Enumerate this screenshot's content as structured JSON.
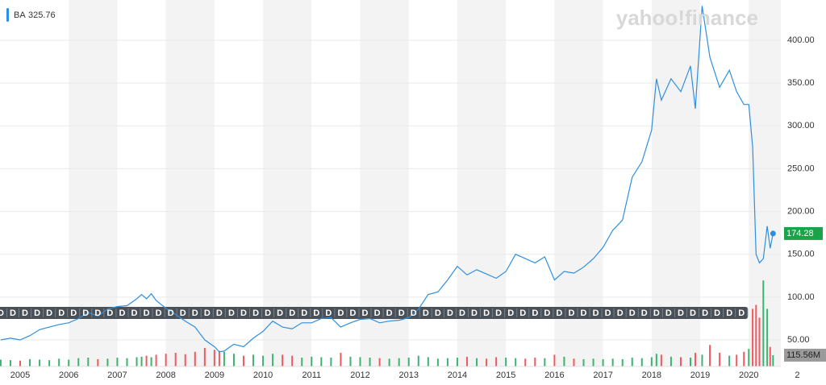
{
  "chart_data": {
    "type": "line",
    "logo": "yahoo!finance",
    "legend": {
      "symbol": "BA",
      "value": 325.76
    },
    "xlim": [
      2004.585,
      2020.66
    ],
    "xticks": [
      2005,
      2006,
      2007,
      2008,
      2009,
      2010,
      2011,
      2012,
      2013,
      2014,
      2015,
      2016,
      2017,
      2018,
      2019,
      2020,
      {
        "value": 2021,
        "label": "2"
      }
    ],
    "ylim": [
      19,
      447
    ],
    "yticks": [
      {
        "value": 50,
        "label": "50.00"
      },
      {
        "value": 100,
        "label": "100.00"
      },
      {
        "value": 150,
        "label": "150.00"
      },
      {
        "value": 200,
        "label": "200.00"
      },
      {
        "value": 250,
        "label": "250.00"
      },
      {
        "value": 300,
        "label": "300.00"
      },
      {
        "value": 350,
        "label": "350.00"
      },
      {
        "value": 400,
        "label": "400.00"
      }
    ],
    "y2lim": [
      0,
      3750
    ],
    "grid": true,
    "x": [
      2004.6,
      2004.8,
      2005.0,
      2005.2,
      2005.4,
      2005.6,
      2005.8,
      2006.0,
      2006.2,
      2006.4,
      2006.6,
      2006.8,
      2007.0,
      2007.2,
      2007.4,
      2007.5,
      2007.6,
      2007.7,
      2007.8,
      2008.0,
      2008.2,
      2008.4,
      2008.6,
      2008.8,
      2009.0,
      2009.1,
      2009.2,
      2009.4,
      2009.6,
      2009.8,
      2010.0,
      2010.2,
      2010.4,
      2010.6,
      2010.8,
      2011.0,
      2011.2,
      2011.4,
      2011.6,
      2011.8,
      2012.0,
      2012.2,
      2012.4,
      2012.6,
      2012.8,
      2013.0,
      2013.2,
      2013.4,
      2013.6,
      2013.8,
      2014.0,
      2014.2,
      2014.4,
      2014.6,
      2014.8,
      2015.0,
      2015.2,
      2015.4,
      2015.6,
      2015.8,
      2016.0,
      2016.2,
      2016.4,
      2016.6,
      2016.8,
      2017.0,
      2017.2,
      2017.4,
      2017.6,
      2017.8,
      2018.0,
      2018.1,
      2018.2,
      2018.4,
      2018.6,
      2018.8,
      2018.9,
      2019.04,
      2019.2,
      2019.4,
      2019.6,
      2019.75,
      2019.9,
      2020.0,
      2020.08,
      2020.15,
      2020.22,
      2020.3,
      2020.38,
      2020.44,
      2020.5
    ],
    "series": [
      {
        "name": "BA",
        "color": "#2e8fe0",
        "last_color": "#1aa34a",
        "values": [
          50,
          52,
          50,
          55,
          62,
          65,
          68,
          70,
          75,
          82,
          78,
          86,
          89,
          90,
          98,
          103,
          98,
          104,
          96,
          87,
          80,
          72,
          65,
          50,
          42,
          36,
          37,
          45,
          42,
          52,
          60,
          72,
          65,
          63,
          70,
          70,
          75,
          76,
          65,
          70,
          74,
          75,
          70,
          72,
          73,
          76,
          86,
          103,
          106,
          120,
          136,
          126,
          132,
          127,
          122,
          130,
          150,
          145,
          140,
          147,
          120,
          130,
          128,
          135,
          145,
          158,
          178,
          190,
          240,
          258,
          295,
          355,
          330,
          355,
          340,
          370,
          320,
          440,
          380,
          345,
          365,
          340,
          325,
          325,
          275,
          150,
          140,
          145,
          183,
          157,
          174.28
        ]
      },
      {
        "name": "Volume",
        "axis": "y2",
        "up_color": "#3cb371",
        "down_color": "#f0595f",
        "label_color": "#9a9a9a",
        "values": [
          70,
          65,
          60,
          75,
          70,
          65,
          80,
          70,
          85,
          90,
          75,
          80,
          90,
          85,
          95,
          100,
          110,
          95,
          120,
          130,
          140,
          125,
          150,
          190,
          170,
          160,
          150,
          130,
          110,
          120,
          110,
          130,
          120,
          110,
          90,
          100,
          95,
          90,
          140,
          100,
          95,
          90,
          85,
          80,
          85,
          90,
          110,
          95,
          80,
          85,
          90,
          100,
          85,
          80,
          95,
          90,
          85,
          80,
          90,
          85,
          120,
          100,
          80,
          75,
          80,
          75,
          80,
          75,
          90,
          85,
          95,
          130,
          120,
          100,
          95,
          90,
          140,
          120,
          220,
          140,
          110,
          120,
          150,
          180,
          590,
          630,
          500,
          880,
          590,
          200,
          115.56
        ],
        "value_labels": [
          null,
          null,
          null,
          null,
          null,
          null,
          null,
          null,
          null,
          null,
          null,
          null,
          null,
          null,
          null,
          null,
          null,
          null,
          null,
          null,
          null,
          null,
          null,
          null,
          null,
          null,
          null,
          null,
          null,
          null,
          null,
          null,
          null,
          null,
          null,
          null,
          null,
          null,
          null,
          null,
          null,
          null,
          null,
          null,
          null,
          null,
          null,
          null,
          null,
          null,
          null,
          null,
          null,
          null,
          null,
          null,
          null,
          null,
          null,
          null,
          null,
          null,
          null,
          null,
          null,
          null,
          null,
          null,
          null,
          null,
          null,
          null,
          null,
          null,
          null,
          null,
          null,
          null,
          null,
          null,
          null,
          null,
          null,
          null,
          null,
          null,
          null,
          null,
          null,
          null,
          "115.56M"
        ]
      }
    ],
    "dividends": {
      "label": "D",
      "x": [
        2004.6,
        2004.85,
        2005.1,
        2005.35,
        2005.6,
        2005.85,
        2006.1,
        2006.35,
        2006.6,
        2006.85,
        2007.1,
        2007.35,
        2007.6,
        2007.85,
        2008.1,
        2008.35,
        2008.6,
        2008.85,
        2009.1,
        2009.35,
        2009.6,
        2009.85,
        2010.1,
        2010.35,
        2010.6,
        2010.85,
        2011.1,
        2011.35,
        2011.6,
        2011.85,
        2012.1,
        2012.35,
        2012.6,
        2012.85,
        2013.1,
        2013.35,
        2013.6,
        2013.85,
        2014.1,
        2014.35,
        2014.6,
        2014.85,
        2015.1,
        2015.35,
        2015.6,
        2015.85,
        2016.1,
        2016.35,
        2016.6,
        2016.85,
        2017.1,
        2017.35,
        2017.6,
        2017.85,
        2018.1,
        2018.35,
        2018.6,
        2018.85,
        2019.1,
        2019.35,
        2019.6,
        2019.85
      ]
    }
  }
}
